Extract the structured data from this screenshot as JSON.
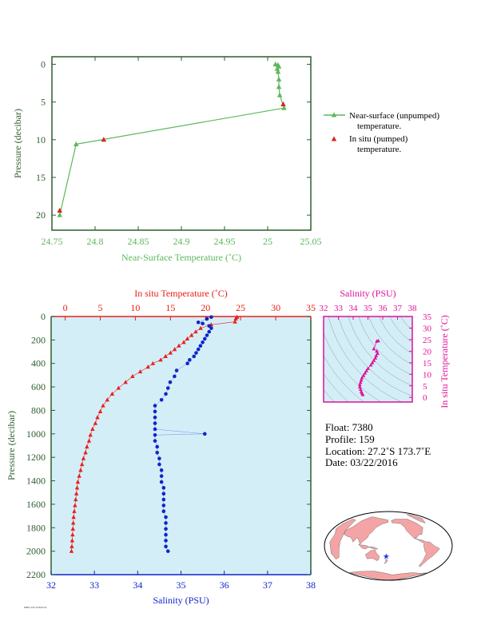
{
  "chart_data": [
    {
      "type": "line",
      "xlabel": "Near-Surface Temperature (˚C)",
      "ylabel": "Pressure (decibar)",
      "xlim": [
        24.75,
        25.05
      ],
      "ylim": [
        22,
        -1
      ],
      "xticks": [
        "24.75",
        "24.8",
        "24.85",
        "24.9",
        "24.95",
        "25",
        "25.05"
      ],
      "yticks": [
        "0",
        "5",
        "10",
        "15",
        "20"
      ],
      "grid": false,
      "legend_position": "right",
      "series": [
        {
          "name": "Near-surface (unpumped) temperature.",
          "color": "#5cb85c",
          "marker": "triangle",
          "points": [
            [
              25.009,
              0.0
            ],
            [
              25.012,
              0.1
            ],
            [
              25.013,
              0.3
            ],
            [
              25.011,
              0.6
            ],
            [
              25.012,
              1.0
            ],
            [
              25.013,
              2.0
            ],
            [
              25.013,
              3.0
            ],
            [
              25.014,
              4.1
            ],
            [
              25.019,
              5.8
            ],
            [
              24.778,
              10.6
            ],
            [
              24.759,
              20.0
            ]
          ]
        },
        {
          "name": "In situ (pumped) temperature.",
          "color": "#d9261c",
          "marker": "triangle",
          "points": [
            [
              25.018,
              5.3
            ],
            [
              24.81,
              10.0
            ],
            [
              24.759,
              19.4
            ]
          ]
        }
      ]
    },
    {
      "type": "scatter",
      "top_axis_label": "In situ Temperature (˚C)",
      "bottom_axis_label": "Salinity (PSU)",
      "ylabel": "Pressure (decibar)",
      "temperature_lim": [
        -2,
        35
      ],
      "salinity_lim": [
        32,
        38
      ],
      "ylim": [
        2200,
        0
      ],
      "temperature_ticks": [
        "0",
        "5",
        "10",
        "15",
        "20",
        "25",
        "30",
        "35"
      ],
      "salinity_ticks": [
        "32",
        "33",
        "34",
        "35",
        "36",
        "37",
        "38"
      ],
      "pressure_ticks": [
        "0",
        "200",
        "400",
        "600",
        "800",
        "1000",
        "1200",
        "1400",
        "1600",
        "1800",
        "2000",
        "2200"
      ],
      "background": "#d4eef8",
      "series": [
        {
          "name": "In situ Temperature",
          "color": "#e8211a",
          "marker": "triangle",
          "points": [
            [
              24.5,
              5
            ],
            [
              24.3,
              20
            ],
            [
              24.2,
              45
            ],
            [
              20.8,
              70
            ],
            [
              19.3,
              100
            ],
            [
              18.6,
              130
            ],
            [
              18.0,
              160
            ],
            [
              17.4,
              190
            ],
            [
              16.9,
              220
            ],
            [
              16.2,
              250
            ],
            [
              15.6,
              280
            ],
            [
              15.0,
              310
            ],
            [
              14.3,
              340
            ],
            [
              13.6,
              370
            ],
            [
              12.5,
              400
            ],
            [
              11.8,
              430
            ],
            [
              10.7,
              470
            ],
            [
              9.6,
              510
            ],
            [
              8.6,
              560
            ],
            [
              7.6,
              610
            ],
            [
              6.7,
              660
            ],
            [
              6.0,
              710
            ],
            [
              5.4,
              760
            ],
            [
              5.0,
              810
            ],
            [
              4.6,
              860
            ],
            [
              4.3,
              910
            ],
            [
              3.9,
              960
            ],
            [
              3.6,
              1010
            ],
            [
              3.4,
              1060
            ],
            [
              3.1,
              1110
            ],
            [
              2.9,
              1160
            ],
            [
              2.6,
              1210
            ],
            [
              2.4,
              1260
            ],
            [
              2.2,
              1310
            ],
            [
              2.0,
              1360
            ],
            [
              1.8,
              1410
            ],
            [
              1.7,
              1460
            ],
            [
              1.6,
              1510
            ],
            [
              1.5,
              1560
            ],
            [
              1.4,
              1610
            ],
            [
              1.3,
              1660
            ],
            [
              1.2,
              1710
            ],
            [
              1.15,
              1760
            ],
            [
              1.1,
              1810
            ],
            [
              1.05,
              1860
            ],
            [
              1.0,
              1910
            ],
            [
              0.95,
              1960
            ],
            [
              0.9,
              2000
            ]
          ]
        },
        {
          "name": "Salinity",
          "color": "#1025c8",
          "marker": "circle",
          "points": [
            [
              35.7,
              5
            ],
            [
              35.6,
              20
            ],
            [
              35.4,
              50
            ],
            [
              35.5,
              60
            ],
            [
              35.65,
              80
            ],
            [
              35.7,
              100
            ],
            [
              35.65,
              130
            ],
            [
              35.6,
              160
            ],
            [
              35.55,
              190
            ],
            [
              35.5,
              220
            ],
            [
              35.45,
              250
            ],
            [
              35.4,
              280
            ],
            [
              35.35,
              310
            ],
            [
              35.3,
              340
            ],
            [
              35.2,
              370
            ],
            [
              35.15,
              400
            ],
            [
              34.9,
              460
            ],
            [
              34.85,
              510
            ],
            [
              34.75,
              560
            ],
            [
              34.7,
              610
            ],
            [
              34.65,
              660
            ],
            [
              34.55,
              710
            ],
            [
              34.4,
              760
            ],
            [
              34.4,
              810
            ],
            [
              34.4,
              860
            ],
            [
              34.4,
              910
            ],
            [
              34.4,
              960
            ],
            [
              35.55,
              1000
            ],
            [
              34.4,
              1010
            ],
            [
              34.4,
              1060
            ],
            [
              34.45,
              1110
            ],
            [
              34.45,
              1160
            ],
            [
              34.5,
              1210
            ],
            [
              34.5,
              1260
            ],
            [
              34.55,
              1310
            ],
            [
              34.55,
              1360
            ],
            [
              34.55,
              1410
            ],
            [
              34.6,
              1460
            ],
            [
              34.6,
              1510
            ],
            [
              34.6,
              1560
            ],
            [
              34.6,
              1610
            ],
            [
              34.6,
              1660
            ],
            [
              34.65,
              1710
            ],
            [
              34.65,
              1760
            ],
            [
              34.65,
              1810
            ],
            [
              34.65,
              1860
            ],
            [
              34.65,
              1910
            ],
            [
              34.65,
              1960
            ],
            [
              34.7,
              2000
            ]
          ]
        }
      ]
    },
    {
      "type": "scatter",
      "top_axis_label": "Salinity (PSU)",
      "right_axis_label": "In situ Temperature (˚C)",
      "xlim": [
        32,
        38
      ],
      "ylim": [
        -2,
        35
      ],
      "xticks": [
        "32",
        "33",
        "34",
        "35",
        "36",
        "37",
        "38"
      ],
      "yticks": [
        "0",
        "5",
        "10",
        "15",
        "20",
        "25",
        "30",
        "35"
      ],
      "color": "#e0119a",
      "background": "#d4eef8",
      "points": [
        [
          35.7,
          24.5
        ],
        [
          35.6,
          24.3
        ],
        [
          35.4,
          21.0
        ],
        [
          35.6,
          20.0
        ],
        [
          35.65,
          19.0
        ],
        [
          35.55,
          18.0
        ],
        [
          35.5,
          17.0
        ],
        [
          35.4,
          16.0
        ],
        [
          35.3,
          15.0
        ],
        [
          35.2,
          14.0
        ],
        [
          35.0,
          12.5
        ],
        [
          34.9,
          11.5
        ],
        [
          34.8,
          10.5
        ],
        [
          34.7,
          9.5
        ],
        [
          34.6,
          8.5
        ],
        [
          34.55,
          7.5
        ],
        [
          34.5,
          6.5
        ],
        [
          34.45,
          5.5
        ],
        [
          34.45,
          4.5
        ],
        [
          34.5,
          3.5
        ],
        [
          34.55,
          2.5
        ],
        [
          34.6,
          1.8
        ],
        [
          34.65,
          1.2
        ]
      ]
    }
  ],
  "float_info": {
    "float": "Float:  7380",
    "profile": "Profile:  159",
    "location": "Location:  27.2˚S  173.7˚E",
    "date": "Date:  03/22/2016"
  },
  "map": {
    "land_color": "#f4a4a4",
    "ocean_color": "#ffffff",
    "marker_color": "#1a3fd8",
    "marker_lat": -27.2,
    "marker_lon": 173.7
  },
  "footer_note": "PMEL/UW 2016/03/24"
}
